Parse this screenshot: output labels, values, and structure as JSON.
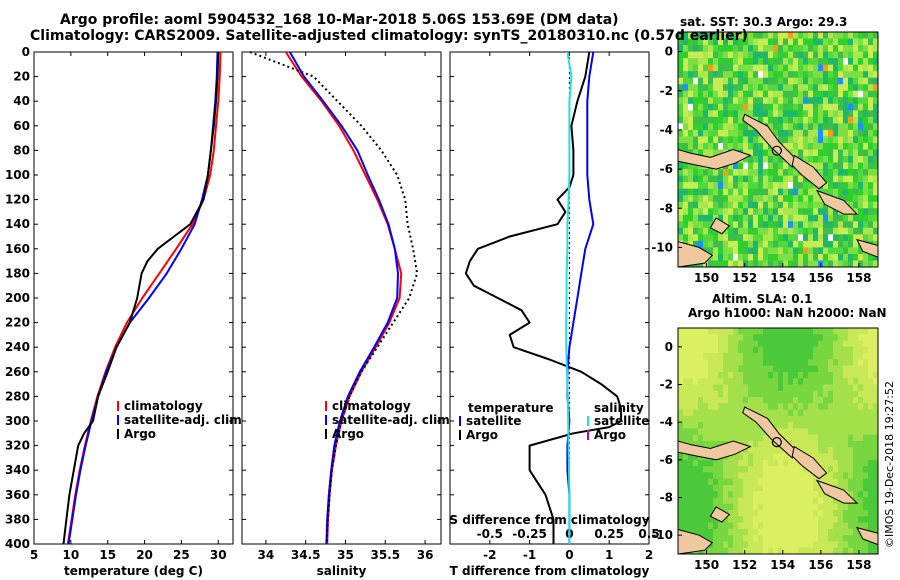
{
  "header": {
    "line1": "Argo profile: aoml 5904532_168 10-Mar-2018 5.06S 153.69E (DM data)",
    "line2": "Climatology: CARS2009. Satellite-adjusted climatology: synTS_20180310.nc (0.57d earlier)"
  },
  "colors": {
    "argo": "#000000",
    "clim": "#ff0000",
    "sat": "#0000ff",
    "sdiff": "#22e0e0",
    "sdiff_legend": "#c000c0",
    "land": "#f0c8a0"
  },
  "chart_data": [
    {
      "type": "line",
      "id": "temperature",
      "xlabel": "temperature (deg C)",
      "ylabel": "",
      "xlim": [
        5,
        32
      ],
      "ylim": [
        400,
        0
      ],
      "xticks": [
        5,
        10,
        15,
        20,
        25,
        30
      ],
      "yticks": [
        0,
        20,
        40,
        60,
        80,
        100,
        120,
        140,
        160,
        180,
        200,
        220,
        240,
        260,
        280,
        300,
        320,
        340,
        360,
        380,
        400
      ],
      "legend": [
        "climatology",
        "satellite-adj. clim.",
        "Argo"
      ],
      "series": [
        {
          "name": "climatology",
          "color": "#ff0000",
          "depth": [
            0,
            20,
            40,
            60,
            80,
            100,
            120,
            140,
            160,
            180,
            200,
            220,
            240,
            260,
            280,
            300,
            320,
            340,
            360,
            380,
            400
          ],
          "values": [
            30.3,
            30.2,
            30.0,
            29.7,
            29.4,
            28.9,
            28.0,
            26.5,
            24.3,
            22.0,
            19.7,
            17.6,
            16.0,
            14.7,
            13.6,
            12.7,
            11.9,
            11.2,
            10.6,
            10.1,
            9.6
          ]
        },
        {
          "name": "satellite-adj. clim.",
          "color": "#0000ff",
          "depth": [
            0,
            20,
            40,
            60,
            80,
            100,
            120,
            140,
            160,
            180,
            200,
            220,
            240,
            260,
            280,
            300,
            320,
            340,
            360,
            380,
            400
          ],
          "values": [
            29.9,
            29.8,
            29.6,
            29.3,
            29.0,
            28.6,
            27.8,
            26.8,
            25.0,
            23.0,
            20.6,
            18.0,
            16.2,
            14.8,
            13.7,
            12.8,
            12.0,
            11.3,
            10.7,
            10.2,
            9.7
          ]
        },
        {
          "name": "Argo",
          "color": "#000000",
          "depth": [
            0,
            20,
            40,
            60,
            80,
            100,
            120,
            140,
            150,
            160,
            170,
            180,
            200,
            220,
            240,
            260,
            280,
            300,
            310,
            320,
            340,
            360,
            380,
            400
          ],
          "values": [
            30.0,
            29.9,
            29.7,
            29.4,
            29.0,
            28.6,
            28.0,
            26.2,
            24.0,
            21.8,
            20.4,
            19.6,
            19.0,
            18.0,
            16.2,
            15.0,
            13.7,
            13.0,
            11.8,
            11.0,
            10.4,
            9.8,
            9.4,
            9.0
          ]
        }
      ]
    },
    {
      "type": "line",
      "id": "salinity",
      "xlabel": "salinity",
      "ylabel": "",
      "xlim": [
        33.7,
        36.2
      ],
      "ylim": [
        400,
        0
      ],
      "xticks": [
        34,
        34.5,
        35,
        35.5,
        36
      ],
      "legend": [
        "climatology",
        "satellite-adj. clim.",
        "Argo"
      ],
      "series": [
        {
          "name": "climatology",
          "color": "#ff0000",
          "depth": [
            0,
            20,
            40,
            60,
            80,
            100,
            120,
            140,
            160,
            180,
            200,
            220,
            240,
            260,
            280,
            300,
            320,
            340,
            360,
            380,
            400
          ],
          "values": [
            34.25,
            34.45,
            34.7,
            34.92,
            35.1,
            35.25,
            35.4,
            35.53,
            35.62,
            35.7,
            35.68,
            35.55,
            35.38,
            35.2,
            35.05,
            34.95,
            34.88,
            34.83,
            34.8,
            34.78,
            34.77
          ]
        },
        {
          "name": "satellite-adj. clim.",
          "color": "#0000ff",
          "depth": [
            0,
            20,
            40,
            60,
            80,
            100,
            120,
            140,
            160,
            180,
            200,
            220,
            240,
            260,
            280,
            300,
            320,
            340,
            360,
            380,
            400
          ],
          "values": [
            34.3,
            34.48,
            34.72,
            34.95,
            35.15,
            35.28,
            35.42,
            35.54,
            35.62,
            35.66,
            35.65,
            35.53,
            35.36,
            35.18,
            35.03,
            34.93,
            34.86,
            34.82,
            34.79,
            34.77,
            34.76
          ]
        },
        {
          "name": "Argo",
          "color": "#000000",
          "dash": true,
          "depth": [
            0,
            20,
            40,
            60,
            80,
            100,
            120,
            140,
            160,
            180,
            200,
            220,
            240,
            260,
            280,
            300,
            320,
            340,
            360,
            380,
            400
          ],
          "values": [
            33.8,
            34.6,
            34.9,
            35.2,
            35.45,
            35.65,
            35.75,
            35.78,
            35.85,
            35.9,
            35.8,
            35.6,
            35.4,
            35.2,
            35.05,
            34.95,
            34.88,
            34.83,
            34.8,
            34.78,
            34.76
          ]
        }
      ]
    },
    {
      "type": "line",
      "id": "differences",
      "xlabel": "T difference from climatology",
      "xlabel_top": "S difference from climatology",
      "xlim": [
        -3,
        2
      ],
      "ylim": [
        400,
        0
      ],
      "xticks": [
        -2,
        -1,
        0,
        1,
        2
      ],
      "xticks_s_values": [
        -0.5,
        -0.25,
        0,
        0.25,
        0.5
      ],
      "legend_headers": [
        "temperature",
        "salinity"
      ],
      "legend": [
        "satellite",
        "Argo",
        "satellite",
        "Argo"
      ],
      "series": [
        {
          "name": "T Argo",
          "color": "#000000",
          "depth": [
            0,
            20,
            40,
            60,
            80,
            100,
            110,
            120,
            130,
            140,
            150,
            160,
            170,
            180,
            190,
            200,
            210,
            220,
            230,
            240,
            250,
            260,
            270,
            280,
            290,
            300,
            305,
            310,
            320,
            340,
            360,
            380,
            400
          ],
          "values": [
            0.5,
            0.4,
            0.2,
            0.05,
            0.1,
            0.1,
            0.0,
            -0.3,
            -0.1,
            -0.3,
            -1.5,
            -2.3,
            -2.5,
            -2.6,
            -2.4,
            -1.8,
            -1.2,
            -1.0,
            -1.5,
            -1.4,
            -0.5,
            0.3,
            0.8,
            1.2,
            1.3,
            1.3,
            1.0,
            0.1,
            -1.0,
            -1.0,
            -0.6,
            -0.4,
            -0.4
          ]
        },
        {
          "name": "T satellite",
          "color": "#0000ff",
          "depth": [
            0,
            20,
            40,
            60,
            80,
            100,
            120,
            140,
            160,
            180,
            200,
            220,
            240,
            260,
            280,
            300,
            320,
            340,
            360,
            380,
            400
          ],
          "values": [
            0.6,
            0.5,
            0.45,
            0.45,
            0.45,
            0.45,
            0.5,
            0.6,
            0.4,
            0.3,
            0.2,
            0.1,
            0.0,
            -0.05,
            -0.05,
            0.0,
            -0.05,
            -0.05,
            0.0,
            0.0,
            0.0
          ]
        },
        {
          "name": "S satellite",
          "color": "#22e0e0",
          "depth": [
            0,
            20,
            40,
            60,
            80,
            100,
            120,
            140,
            160,
            180,
            200,
            220,
            240,
            260,
            280,
            300,
            320,
            340,
            360,
            380,
            400
          ],
          "values": [
            -0.05,
            0.05,
            0.0,
            0.0,
            0.0,
            0.0,
            -0.02,
            -0.05,
            -0.05,
            -0.07,
            -0.07,
            -0.08,
            -0.08,
            -0.06,
            -0.04,
            -0.03,
            -0.02,
            -0.01,
            0.0,
            0.0,
            0.0
          ]
        }
      ]
    },
    {
      "type": "heatmap",
      "id": "sst_map",
      "title": "sat. SST: 30.3 Argo: 29.3",
      "xlim": [
        148.5,
        159
      ],
      "ylim": [
        -11,
        1
      ],
      "xticks": [
        150,
        152,
        154,
        156,
        158
      ],
      "yticks": [
        0,
        -2,
        -4,
        -6,
        -8,
        -10
      ],
      "argo_position": {
        "lon": 153.69,
        "lat": -5.06
      }
    },
    {
      "type": "heatmap",
      "id": "sla_map",
      "title": "Altim. SLA: 0.1",
      "subtitle": "Argo h1000: NaN h2000: NaN",
      "xlim": [
        148.5,
        159
      ],
      "ylim": [
        -11,
        1
      ],
      "xticks": [
        150,
        152,
        154,
        156,
        158
      ],
      "yticks": [
        0,
        -2,
        -4,
        -6,
        -8,
        -10
      ],
      "argo_position": {
        "lon": 153.69,
        "lat": -5.06
      }
    }
  ],
  "credit": "©IMOS 19-Dec-2018 19:27:52"
}
